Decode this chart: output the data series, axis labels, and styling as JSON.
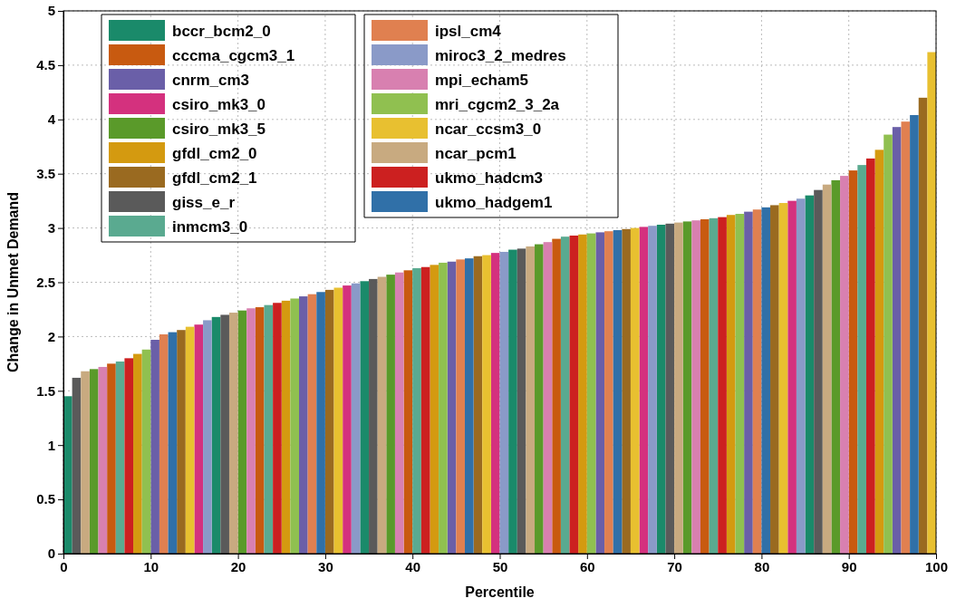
{
  "chart_data": {
    "type": "bar",
    "xlabel": "Percentile",
    "ylabel": "Change in Unmet Demand",
    "xlim": [
      0,
      100
    ],
    "xticks": [
      0,
      10,
      20,
      30,
      40,
      50,
      60,
      70,
      80,
      90,
      100
    ],
    "ylim": [
      0,
      5
    ],
    "yticks": [
      0,
      0.5,
      1,
      1.5,
      2,
      2.5,
      3,
      3.5,
      4,
      4.5,
      5
    ],
    "grid": true,
    "legend": "top left",
    "series": [
      {
        "name": "bccr_bcm2_0",
        "color": "#1a8a6a",
        "x": [
          0.5,
          17.5,
          34.5,
          51.5,
          68.5,
          85.5
        ],
        "values": [
          1.45,
          2.18,
          2.51,
          2.8,
          3.03,
          3.3
        ]
      },
      {
        "name": "cccma_cgcm3_1",
        "color": "#c85a10",
        "x": [
          5.5,
          22.5,
          39.5,
          56.5,
          73.5,
          90.5
        ],
        "values": [
          1.75,
          2.27,
          2.61,
          2.9,
          3.08,
          3.53
        ]
      },
      {
        "name": "cnrm_cm3",
        "color": "#6a5fa8",
        "x": [
          10.5,
          27.5,
          44.5,
          61.5,
          78.5,
          95.5
        ],
        "values": [
          1.97,
          2.37,
          2.69,
          2.96,
          3.15,
          3.93
        ]
      },
      {
        "name": "csiro_mk3_0",
        "color": "#d4317e",
        "x": [
          15.5,
          32.5,
          49.5,
          66.5,
          83.5
        ],
        "values": [
          2.11,
          2.47,
          2.77,
          3.01,
          3.25
        ]
      },
      {
        "name": "csiro_mk3_5",
        "color": "#5a9a2a",
        "x": [
          3.5,
          20.5,
          37.5,
          54.5,
          71.5,
          88.5
        ],
        "values": [
          1.7,
          2.24,
          2.57,
          2.85,
          3.06,
          3.44
        ]
      },
      {
        "name": "gfdl_cm2_0",
        "color": "#d49a10",
        "x": [
          8.5,
          25.5,
          42.5,
          59.5,
          76.5,
          93.5
        ],
        "values": [
          1.84,
          2.33,
          2.66,
          2.94,
          3.12,
          3.72
        ]
      },
      {
        "name": "gfdl_cm2_1",
        "color": "#9a6a20",
        "x": [
          13.5,
          30.5,
          47.5,
          64.5,
          81.5,
          98.5
        ],
        "values": [
          2.06,
          2.43,
          2.74,
          2.99,
          3.21,
          4.2
        ]
      },
      {
        "name": "giss_e_r",
        "color": "#5a5a5a",
        "x": [
          1.5,
          18.5,
          35.5,
          52.5,
          69.5,
          86.5
        ],
        "values": [
          1.62,
          2.2,
          2.53,
          2.81,
          3.04,
          3.35
        ]
      },
      {
        "name": "inmcm3_0",
        "color": "#5aaa90",
        "x": [
          6.5,
          23.5,
          40.5,
          57.5,
          74.5,
          91.5
        ],
        "values": [
          1.77,
          2.29,
          2.63,
          2.92,
          3.09,
          3.58
        ]
      },
      {
        "name": "ipsl_cm4",
        "color": "#e08050",
        "x": [
          11.5,
          28.5,
          45.5,
          62.5,
          79.5,
          96.5
        ],
        "values": [
          2.02,
          2.39,
          2.71,
          2.97,
          3.17,
          3.98
        ]
      },
      {
        "name": "miroc3_2_medres",
        "color": "#8a9ac8",
        "x": [
          16.5,
          33.5,
          50.5,
          67.5,
          84.5
        ],
        "values": [
          2.15,
          2.49,
          2.78,
          3.02,
          3.27
        ]
      },
      {
        "name": "mpi_echam5",
        "color": "#d880b0",
        "x": [
          4.5,
          21.5,
          38.5,
          55.5,
          72.5,
          89.5
        ],
        "values": [
          1.72,
          2.26,
          2.59,
          2.87,
          3.07,
          3.48
        ]
      },
      {
        "name": "mri_cgcm2_3_2a",
        "color": "#90c050",
        "x": [
          9.5,
          26.5,
          43.5,
          60.5,
          77.5,
          94.5
        ],
        "values": [
          1.88,
          2.35,
          2.68,
          2.95,
          3.13,
          3.86
        ]
      },
      {
        "name": "ncar_ccsm3_0",
        "color": "#e8c030",
        "x": [
          14.5,
          31.5,
          48.5,
          65.5,
          82.5,
          99.5
        ],
        "values": [
          2.09,
          2.45,
          2.75,
          3.0,
          3.23,
          4.62
        ]
      },
      {
        "name": "ncar_pcm1",
        "color": "#c8aa80",
        "x": [
          2.5,
          19.5,
          36.5,
          53.5,
          70.5,
          87.5
        ],
        "values": [
          1.68,
          2.22,
          2.55,
          2.83,
          3.05,
          3.4
        ]
      },
      {
        "name": "ukmo_hadcm3",
        "color": "#cc2020",
        "x": [
          7.5,
          24.5,
          41.5,
          58.5,
          75.5,
          92.5
        ],
        "values": [
          1.8,
          2.31,
          2.64,
          2.93,
          3.1,
          3.64
        ]
      },
      {
        "name": "ukmo_hadgem1",
        "color": "#3070a8",
        "x": [
          12.5,
          29.5,
          46.5,
          63.5,
          80.5,
          97.5
        ],
        "values": [
          2.04,
          2.41,
          2.72,
          2.98,
          3.19,
          4.04
        ]
      }
    ]
  }
}
